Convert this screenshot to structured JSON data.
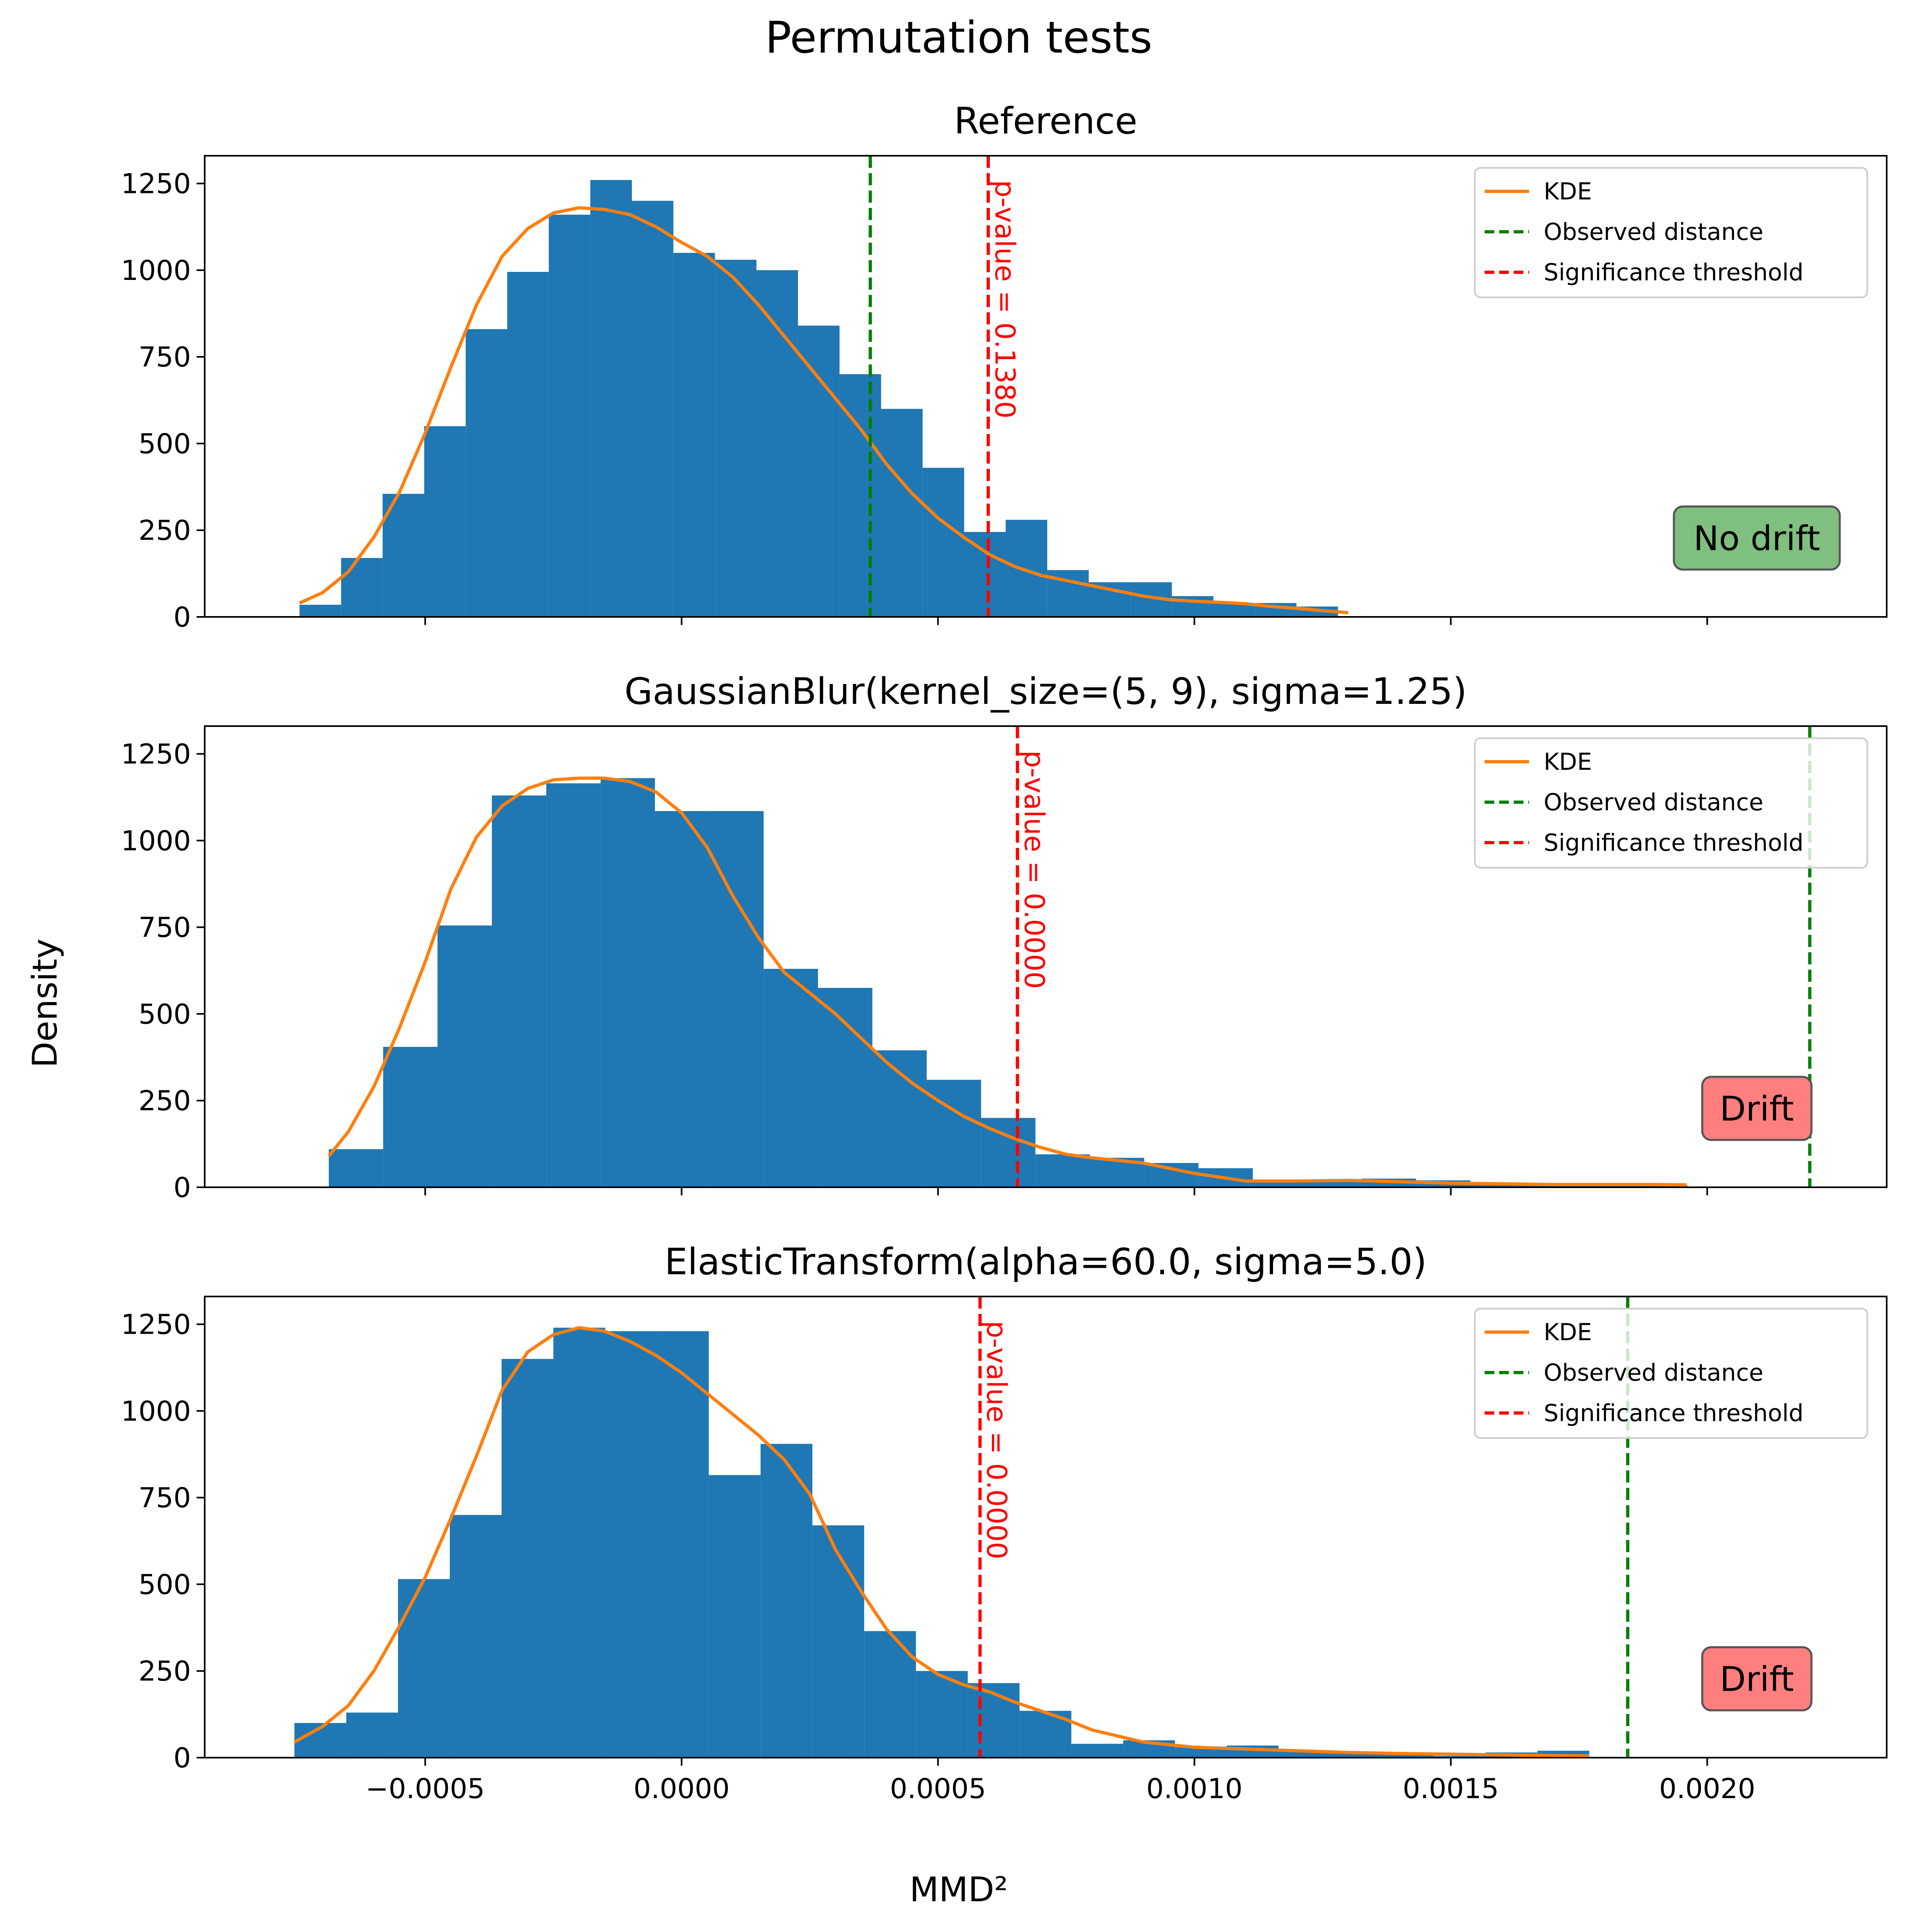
{
  "figure": {
    "title": "Permutation tests",
    "xlabel": "MMD²",
    "ylabel": "Density"
  },
  "colors": {
    "hist": "#1f77b4",
    "kde": "#ff7f0e",
    "observed": "#008000",
    "threshold": "#ff0000",
    "no_drift_box": "#7fbf7f",
    "drift_box": "#ff7f7f"
  },
  "legend_labels": [
    "KDE",
    "Observed distance",
    "Significance threshold"
  ],
  "chart_data": [
    {
      "type": "bar",
      "title": "Reference",
      "xlim": [
        -0.00093,
        0.00235
      ],
      "ylim": [
        0,
        1330
      ],
      "xticks": [
        -0.0005,
        0.0,
        0.0005,
        0.001,
        0.0015,
        0.002
      ],
      "xtick_labels": [
        "−0.0005",
        "0.0000",
        "0.0005",
        "0.0010",
        "0.0015",
        "0.0020"
      ],
      "show_xtick_labels": false,
      "yticks": [
        0,
        250,
        500,
        750,
        1000,
        1250
      ],
      "ytick_labels": [
        "0",
        "250",
        "500",
        "750",
        "1000",
        "1250"
      ],
      "bin_edges": [
        -0.000745,
        -0.000664,
        -0.000583,
        -0.000502,
        -0.000421,
        -0.00034,
        -0.000259,
        -0.000178,
        -9.7e-05,
        -1.6e-05,
        6.5e-05,
        0.000146,
        0.000227,
        0.000308,
        0.000389,
        0.00047,
        0.000551,
        0.000632,
        0.000713,
        0.000794,
        0.000875,
        0.000956,
        0.001037,
        0.001118,
        0.001199,
        0.00128
      ],
      "counts": [
        35,
        170,
        355,
        550,
        830,
        995,
        1160,
        1260,
        1200,
        1050,
        1030,
        1000,
        840,
        700,
        600,
        430,
        245,
        280,
        135,
        100,
        100,
        60,
        40,
        40,
        30
      ],
      "kde": {
        "x": [
          -0.000745,
          -0.0007,
          -0.00065,
          -0.0006,
          -0.00055,
          -0.0005,
          -0.00045,
          -0.0004,
          -0.00035,
          -0.0003,
          -0.00025,
          -0.0002,
          -0.00015,
          -0.0001,
          -5e-05,
          0.0,
          5e-05,
          0.0001,
          0.00015,
          0.0002,
          0.00025,
          0.0003,
          0.00035,
          0.0004,
          0.00045,
          0.0005,
          0.00055,
          0.0006,
          0.00065,
          0.0007,
          0.00075,
          0.0008,
          0.00085,
          0.0009,
          0.00095,
          0.001,
          0.00105,
          0.0011,
          0.00115,
          0.0012,
          0.00125,
          0.0013
        ],
        "y": [
          40,
          70,
          130,
          230,
          360,
          530,
          720,
          900,
          1040,
          1120,
          1165,
          1180,
          1175,
          1160,
          1125,
          1080,
          1040,
          980,
          900,
          810,
          720,
          630,
          540,
          440,
          355,
          285,
          230,
          180,
          145,
          120,
          105,
          90,
          75,
          60,
          50,
          45,
          42,
          38,
          30,
          25,
          18,
          12
        ]
      },
      "observed_distance": 0.000368,
      "threshold": 0.000598,
      "pvalue_text": "p-value = 0.1380",
      "status": "No drift",
      "status_kind": "no_drift"
    },
    {
      "type": "bar",
      "title": "GaussianBlur(kernel_size=(5, 9), sigma=1.25)",
      "xlim": [
        -0.00093,
        0.00235
      ],
      "ylim": [
        0,
        1330
      ],
      "xticks": [
        -0.0005,
        0.0,
        0.0005,
        0.001,
        0.0015,
        0.002
      ],
      "xtick_labels": [
        "−0.0005",
        "0.0000",
        "0.0005",
        "0.0010",
        "0.0015",
        "0.0020"
      ],
      "show_xtick_labels": false,
      "yticks": [
        0,
        250,
        500,
        750,
        1000,
        1250
      ],
      "ytick_labels": [
        "0",
        "250",
        "500",
        "750",
        "1000",
        "1250"
      ],
      "bin_edges": [
        -0.000688,
        -0.000582,
        -0.000476,
        -0.00037,
        -0.000264,
        -0.000158,
        -5.2e-05,
        5.4e-05,
        0.00016,
        0.000266,
        0.000372,
        0.000478,
        0.000584,
        0.00069,
        0.000796,
        0.000902,
        0.001008,
        0.001114,
        0.00122,
        0.001326,
        0.001432,
        0.001538,
        0.001644,
        0.00175,
        0.001856,
        0.001962
      ],
      "counts": [
        110,
        405,
        755,
        1130,
        1165,
        1180,
        1085,
        1085,
        630,
        575,
        395,
        310,
        200,
        95,
        85,
        70,
        55,
        15,
        20,
        25,
        20,
        10,
        5,
        5,
        5
      ],
      "kde": {
        "x": [
          -0.000688,
          -0.00065,
          -0.0006,
          -0.00055,
          -0.0005,
          -0.00045,
          -0.0004,
          -0.00035,
          -0.0003,
          -0.00025,
          -0.0002,
          -0.00015,
          -0.0001,
          -5e-05,
          0.0,
          5e-05,
          0.0001,
          0.00015,
          0.0002,
          0.00025,
          0.0003,
          0.00035,
          0.0004,
          0.00045,
          0.0005,
          0.00055,
          0.0006,
          0.00065,
          0.0007,
          0.00075,
          0.0008,
          0.0009,
          0.001,
          0.0011,
          0.0012,
          0.0013,
          0.0014,
          0.0015,
          0.0016,
          0.0017,
          0.0018,
          0.0019,
          0.00196
        ],
        "y": [
          90,
          160,
          290,
          460,
          650,
          860,
          1010,
          1100,
          1150,
          1175,
          1180,
          1180,
          1170,
          1140,
          1080,
          980,
          840,
          720,
          620,
          560,
          500,
          430,
          360,
          300,
          250,
          205,
          170,
          140,
          115,
          95,
          85,
          70,
          40,
          18,
          18,
          20,
          16,
          12,
          10,
          8,
          8,
          8,
          7
        ]
      },
      "observed_distance": 0.0022,
      "threshold": 0.000655,
      "pvalue_text": "p-value = 0.0000",
      "status": "Drift",
      "status_kind": "drift"
    },
    {
      "type": "bar",
      "title": "ElasticTransform(alpha=60.0, sigma=5.0)",
      "xlim": [
        -0.00093,
        0.00235
      ],
      "ylim": [
        0,
        1330
      ],
      "xticks": [
        -0.0005,
        0.0,
        0.0005,
        0.001,
        0.0015,
        0.002
      ],
      "xtick_labels": [
        "−0.0005",
        "0.0000",
        "0.0005",
        "0.0010",
        "0.0015",
        "0.0020"
      ],
      "show_xtick_labels": true,
      "yticks": [
        0,
        250,
        500,
        750,
        1000,
        1250
      ],
      "ytick_labels": [
        "0",
        "250",
        "500",
        "750",
        "1000",
        "1250"
      ],
      "bin_edges": [
        -0.000755,
        -0.000654,
        -0.000553,
        -0.000452,
        -0.000351,
        -0.00025,
        -0.000149,
        -4.8e-05,
        5.3e-05,
        0.000154,
        0.000255,
        0.000356,
        0.000457,
        0.000558,
        0.000659,
        0.00076,
        0.000861,
        0.000962,
        0.001063,
        0.001164,
        0.001265,
        0.001366,
        0.001467,
        0.001568,
        0.001669,
        0.00177
      ],
      "counts": [
        100,
        130,
        515,
        700,
        1150,
        1240,
        1230,
        1230,
        815,
        905,
        670,
        365,
        250,
        215,
        135,
        40,
        50,
        30,
        35,
        20,
        15,
        10,
        5,
        15,
        20
      ],
      "kde": {
        "x": [
          -0.000755,
          -0.0007,
          -0.00065,
          -0.0006,
          -0.00055,
          -0.0005,
          -0.00045,
          -0.0004,
          -0.00035,
          -0.0003,
          -0.00025,
          -0.0002,
          -0.00015,
          -0.0001,
          -5e-05,
          0.0,
          5e-05,
          0.0001,
          0.00015,
          0.0002,
          0.00025,
          0.0003,
          0.00035,
          0.0004,
          0.00045,
          0.0005,
          0.00055,
          0.0006,
          0.00065,
          0.0007,
          0.00075,
          0.0008,
          0.0009,
          0.001,
          0.0011,
          0.0012,
          0.0013,
          0.0014,
          0.0015,
          0.0016,
          0.0017,
          0.00177
        ],
        "y": [
          45,
          90,
          150,
          250,
          380,
          520,
          690,
          870,
          1060,
          1170,
          1220,
          1240,
          1230,
          1200,
          1160,
          1110,
          1050,
          990,
          930,
          860,
          760,
          600,
          480,
          370,
          290,
          240,
          210,
          190,
          160,
          135,
          110,
          80,
          45,
          30,
          25,
          20,
          15,
          12,
          10,
          8,
          6,
          5
        ]
      },
      "observed_distance": 0.001845,
      "threshold": 0.000582,
      "pvalue_text": "p-value = 0.0000",
      "status": "Drift",
      "status_kind": "drift"
    }
  ]
}
